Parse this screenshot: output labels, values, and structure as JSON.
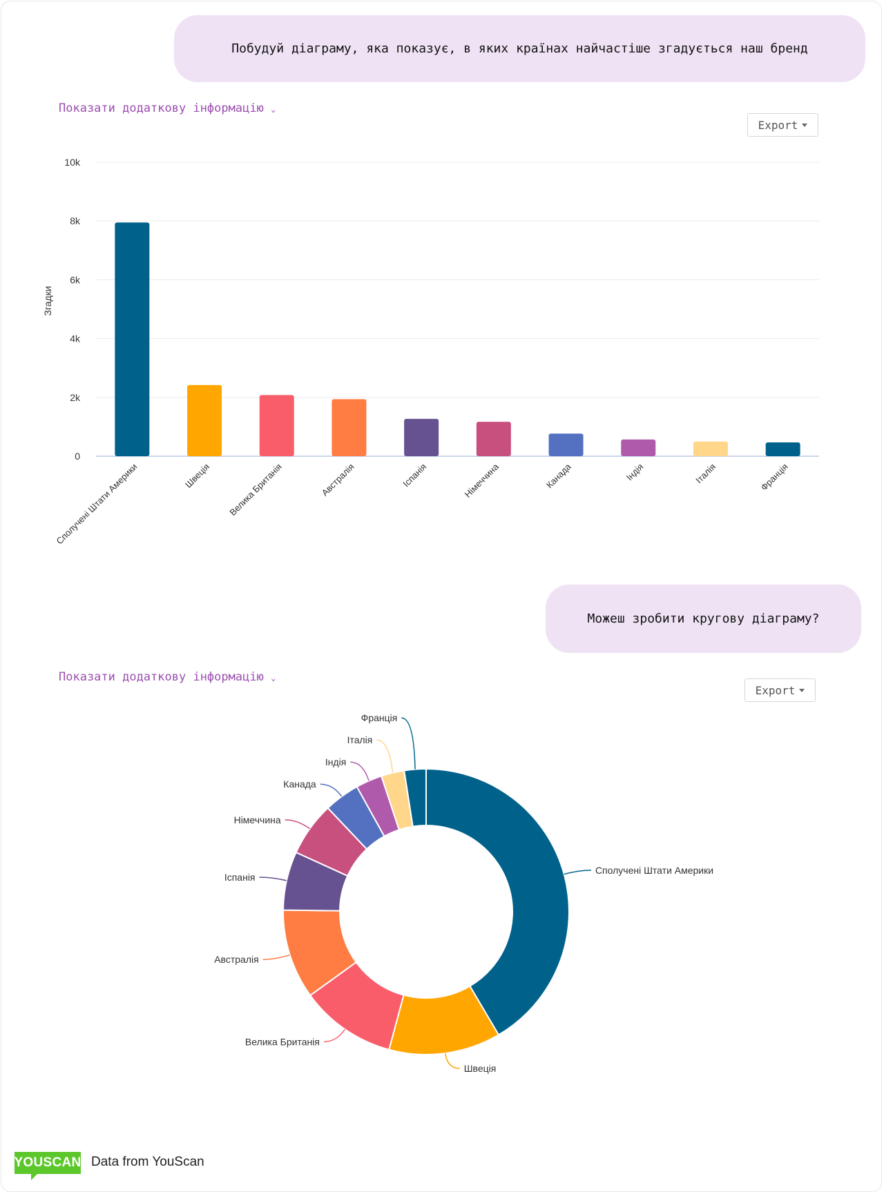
{
  "messages": [
    {
      "text": "Побудуй діаграму, яка показує, в яких країнах найчастіше згадується наш бренд"
    },
    {
      "text": "Можеш зробити кругову діаграму?"
    }
  ],
  "cards": [
    {
      "more_label": "Показати додаткову інформацію",
      "export_label": "Export"
    },
    {
      "more_label": "Показати додаткову інформацію",
      "export_label": "Export"
    }
  ],
  "footer": {
    "logo_text": "YOUSCAN",
    "text": "Data from YouScan"
  },
  "chart_data": [
    {
      "type": "bar",
      "ylabel": "Згадки",
      "ylim": [
        0,
        10000
      ],
      "yticks": [
        "0",
        "2k",
        "4k",
        "6k",
        "8k",
        "10k"
      ],
      "grid": true,
      "categories": [
        "Сполучені Штати Америки",
        "Швеція",
        "Велика Британія",
        "Австралія",
        "Іспанія",
        "Німеччина",
        "Канада",
        "Індія",
        "Італія",
        "Франція"
      ],
      "values": [
        7950,
        2420,
        2080,
        1940,
        1270,
        1170,
        770,
        570,
        500,
        470
      ],
      "colors": [
        "#00628b",
        "#ffa600",
        "#f95d6a",
        "#ff7c43",
        "#665191",
        "#c7507e",
        "#5470c0",
        "#b05aab",
        "#ffd68a",
        "#00628b"
      ]
    },
    {
      "type": "pie",
      "donut": true,
      "categories": [
        "Сполучені Штати Америки",
        "Швеція",
        "Велика Британія",
        "Австралія",
        "Іспанія",
        "Німеччина",
        "Канада",
        "Індія",
        "Італія",
        "Франція"
      ],
      "values": [
        7950,
        2420,
        2080,
        1940,
        1270,
        1170,
        770,
        570,
        500,
        470
      ],
      "colors": [
        "#00628b",
        "#ffa600",
        "#f95d6a",
        "#ff7c43",
        "#665191",
        "#c7507e",
        "#5470c0",
        "#b05aab",
        "#ffd68a",
        "#00628b"
      ]
    }
  ]
}
